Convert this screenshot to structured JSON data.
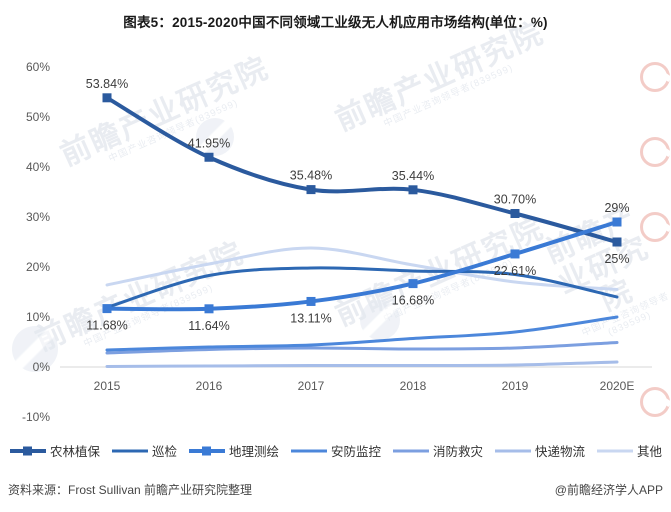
{
  "title": "图表5：2015-2020中国不同领域工业级无人机应用市场结构(单位：%)",
  "footer": {
    "source": "资料来源：Frost Sullivan 前瞻产业研究院整理",
    "credit": "@前瞻经济学人APP"
  },
  "watermark": {
    "line1": "前瞻产业研究院",
    "line2": "中国产业咨询领导者(839599)"
  },
  "chart_data": {
    "type": "line",
    "title": "图表5：2015-2020中国不同领域工业级无人机应用市场结构(单位：%)",
    "xlabel": "",
    "ylabel": "",
    "categories": [
      "2015",
      "2016",
      "2017",
      "2018",
      "2019",
      "2020E"
    ],
    "yticks": [
      {
        "label": "60%",
        "value": 60
      },
      {
        "label": "50%",
        "value": 50
      },
      {
        "label": "40%",
        "value": 40
      },
      {
        "label": "30%",
        "value": 30
      },
      {
        "label": "20%",
        "value": 20
      },
      {
        "label": "10%",
        "value": 10
      },
      {
        "label": "0%",
        "value": 0
      },
      {
        "label": "-10%",
        "value": -10
      }
    ],
    "ylim": [
      -10,
      60
    ],
    "grid": "zero-line-only",
    "legend_position": "bottom",
    "series": [
      {
        "name": "农林植保",
        "color": "#2b5a9e",
        "marker": true,
        "values": [
          53.84,
          41.95,
          35.48,
          35.44,
          30.7,
          25
        ],
        "labels": [
          "53.84%",
          "41.95%",
          "35.48%",
          "35.44%",
          "30.70%",
          "25%"
        ],
        "label_side": [
          "above",
          "above",
          "above",
          "above",
          "above",
          "below"
        ]
      },
      {
        "name": "巡检",
        "color": "#2d68b3",
        "marker": false,
        "values": [
          11.9,
          18.3,
          19.8,
          19.2,
          18.5,
          14.0
        ]
      },
      {
        "name": "地理测绘",
        "color": "#3a7ad5",
        "marker": true,
        "values": [
          11.68,
          11.64,
          13.11,
          16.68,
          22.61,
          29
        ],
        "labels": [
          "11.68%",
          "11.64%",
          "13.11%",
          "16.68%",
          "22.61%",
          "29%"
        ],
        "label_side": [
          "below",
          "below",
          "below",
          "below",
          "below",
          "above"
        ]
      },
      {
        "name": "安防监控",
        "color": "#4c87db",
        "marker": false,
        "values": [
          3.4,
          4.0,
          4.4,
          5.7,
          7.0,
          10.0
        ]
      },
      {
        "name": "消防救灾",
        "color": "#7c9fe0",
        "marker": false,
        "values": [
          2.8,
          3.5,
          3.8,
          3.6,
          3.8,
          4.9
        ]
      },
      {
        "name": "快递物流",
        "color": "#a6bde9",
        "marker": false,
        "values": [
          0.1,
          0.2,
          0.3,
          0.3,
          0.4,
          1.0
        ]
      },
      {
        "name": "其他",
        "color": "#c9d7f1",
        "marker": false,
        "values": [
          16.4,
          20.6,
          23.8,
          20.4,
          17.0,
          15.5
        ]
      }
    ]
  }
}
